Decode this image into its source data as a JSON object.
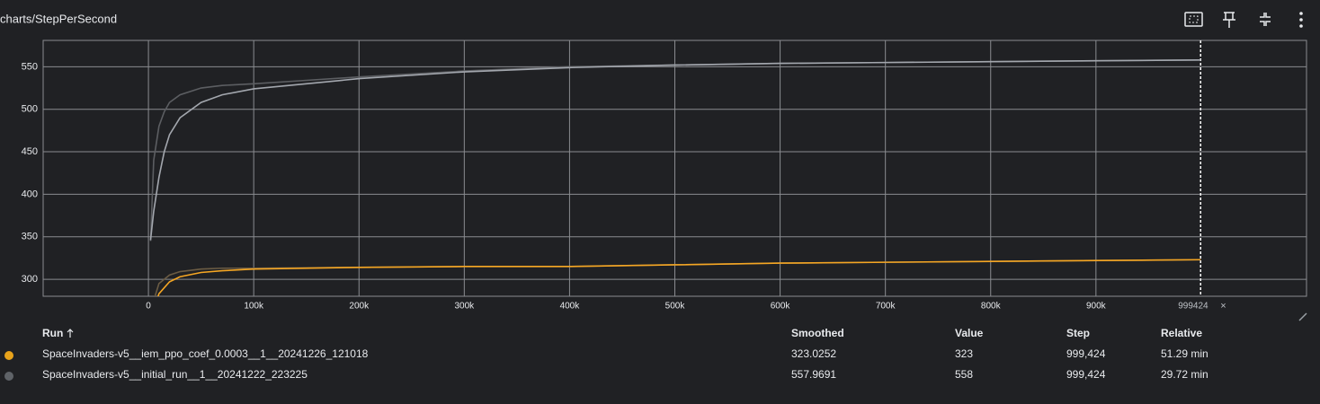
{
  "chart_data": {
    "type": "line",
    "title": "charts/StepPerSecond",
    "xlim": [
      -100000,
      1100000
    ],
    "ylim": [
      280,
      581
    ],
    "grid": true,
    "xticks": [
      {
        "value": 0,
        "label": "0"
      },
      {
        "value": 100000,
        "label": "100k"
      },
      {
        "value": 200000,
        "label": "200k"
      },
      {
        "value": 300000,
        "label": "300k"
      },
      {
        "value": 400000,
        "label": "400k"
      },
      {
        "value": 500000,
        "label": "500k"
      },
      {
        "value": 600000,
        "label": "600k"
      },
      {
        "value": 700000,
        "label": "700k"
      },
      {
        "value": 800000,
        "label": "800k"
      },
      {
        "value": 900000,
        "label": "900k"
      }
    ],
    "yticks": [
      300,
      350,
      400,
      450,
      500,
      550
    ],
    "hover_step": 999424,
    "series": [
      {
        "color": "#6b5c44",
        "x": [
          5000,
          10000,
          20000,
          30000,
          50000,
          70000,
          100000,
          200000,
          300000,
          400000,
          500000,
          600000,
          700000,
          800000,
          900000,
          999424
        ],
        "values": [
          275,
          295,
          305,
          309,
          312,
          313,
          313,
          314,
          315,
          315,
          317,
          319,
          320,
          321,
          322,
          323
        ]
      },
      {
        "color": "#f5a623",
        "x": [
          5000,
          10000,
          20000,
          30000,
          50000,
          70000,
          100000,
          200000,
          300000,
          400000,
          500000,
          600000,
          700000,
          800000,
          900000,
          999424
        ],
        "values": [
          265,
          283,
          297,
          303,
          308,
          310,
          312,
          314,
          315,
          315,
          317,
          319,
          320,
          321,
          322,
          323.0252
        ]
      },
      {
        "color": "#5c5e62",
        "x": [
          2000,
          5000,
          10000,
          15000,
          20000,
          30000,
          50000,
          70000,
          100000,
          150000,
          200000,
          300000,
          400000,
          500000,
          600000,
          700000,
          800000,
          900000,
          999424
        ],
        "values": [
          345,
          440,
          480,
          497,
          508,
          517,
          525,
          528,
          530,
          534,
          538,
          545,
          550,
          552,
          554,
          555,
          556,
          557,
          558
        ]
      },
      {
        "color": "#a3a7ae",
        "x": [
          2000,
          5000,
          10000,
          15000,
          20000,
          30000,
          50000,
          70000,
          100000,
          150000,
          200000,
          300000,
          400000,
          500000,
          600000,
          700000,
          800000,
          900000,
          999424
        ],
        "values": [
          346,
          380,
          420,
          450,
          470,
          490,
          508,
          517,
          524,
          530,
          536,
          544,
          549,
          552,
          554,
          555,
          556,
          557,
          557.9691
        ]
      }
    ]
  },
  "table": {
    "headers": [
      "Run",
      "Smoothed",
      "Value",
      "Step",
      "Relative"
    ],
    "rows": [
      {
        "color": "#e8a31b",
        "cells": [
          "SpaceInvaders-v5__iem_ppo_coef_0.0003__1__20241226_121018",
          "323.0252",
          "323",
          "999,424",
          "51.29 min"
        ]
      },
      {
        "color": "#5f6368",
        "cells": [
          "SpaceInvaders-v5__initial_run__1__20241222_223225",
          "557.9691",
          "558",
          "999,424",
          "29.72 min"
        ]
      }
    ]
  }
}
